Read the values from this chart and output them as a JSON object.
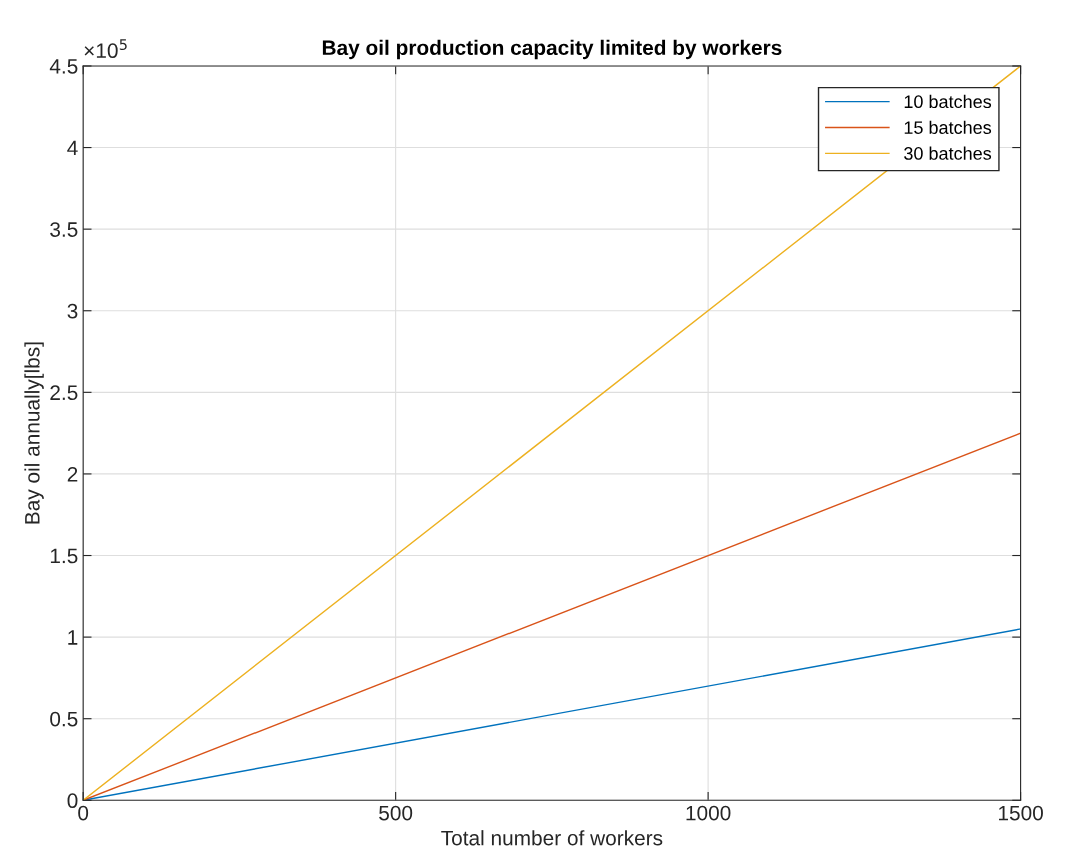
{
  "chart_data": {
    "type": "line",
    "title": "Bay oil production capacity limited by workers",
    "xlabel": "Total number of workers",
    "ylabel": "Bay oil annually[lbs]",
    "annotations": [
      "×10$^{5}$"
    ],
    "x": [
      0,
      1500
    ],
    "series": [
      {
        "name": "10 batches",
        "color": "#0072bd",
        "values": [
          0,
          1.05
        ]
      },
      {
        "name": "15 batches",
        "color": "#d95319",
        "values": [
          0,
          2.25
        ]
      },
      {
        "name": "30 batches",
        "color": "#edb120",
        "values": [
          0,
          4.5
        ]
      }
    ],
    "xlim": [
      0,
      1500
    ],
    "xticks": [
      0,
      500,
      1000,
      1500
    ],
    "ylim": [
      0,
      4.5
    ],
    "yticks": [
      0,
      0.5,
      1,
      1.5,
      2,
      2.5,
      3,
      3.5,
      4,
      4.5
    ],
    "grid": true,
    "legend": "top right",
    "marker": "none",
    "line_style": "solid"
  }
}
